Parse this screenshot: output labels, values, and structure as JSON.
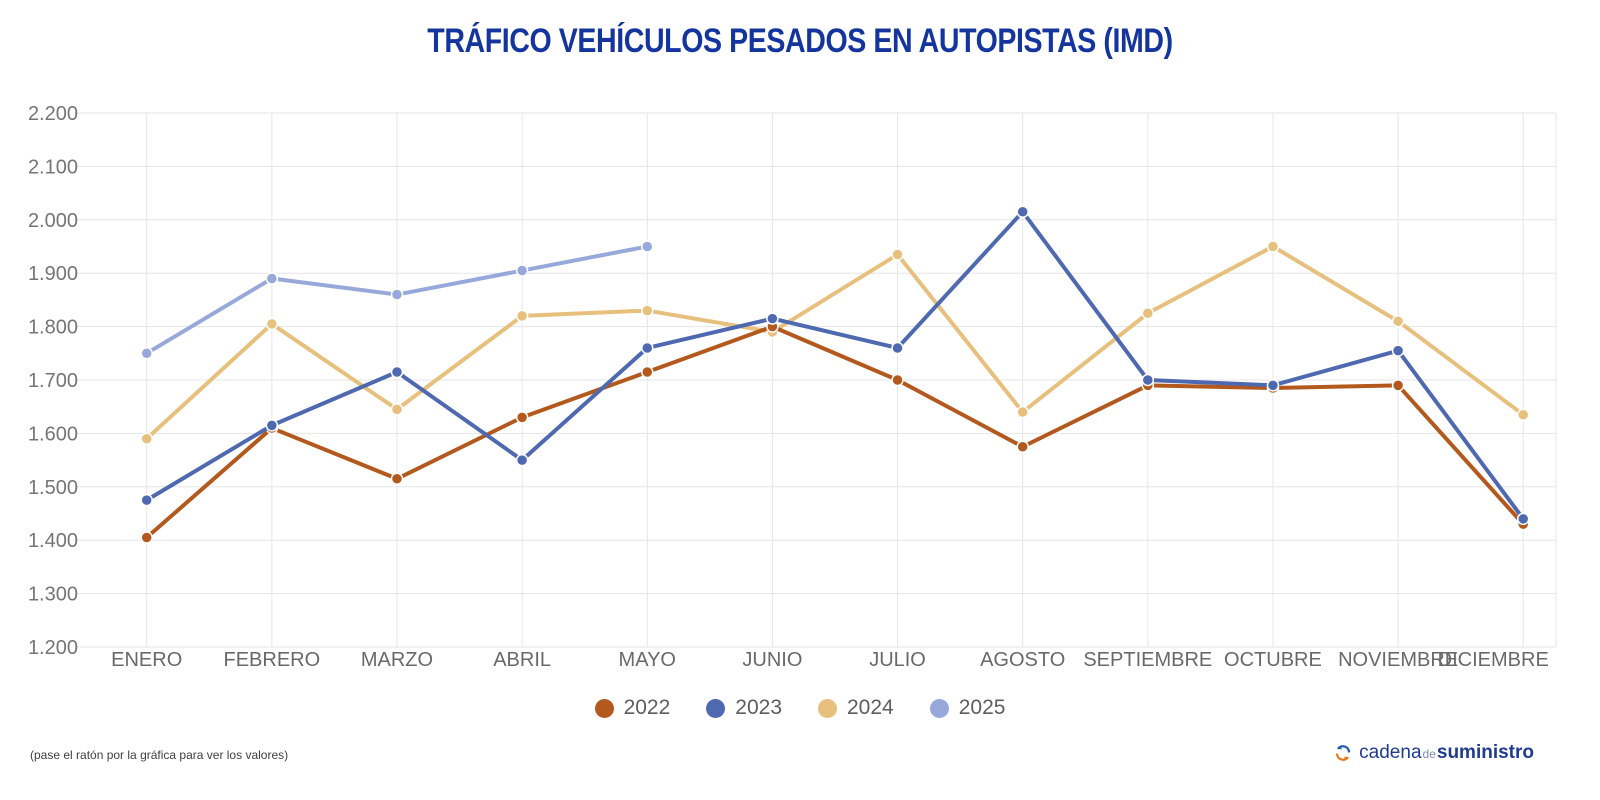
{
  "chart_data": {
    "type": "line",
    "title": "TRÁFICO VEHÍCULOS PESADOS EN AUTOPISTAS (IMD)",
    "categories": [
      "ENERO",
      "FEBRERO",
      "MARZO",
      "ABRIL",
      "MAYO",
      "JUNIO",
      "JULIO",
      "AGOSTO",
      "SEPTIEMBRE",
      "OCTUBRE",
      "NOVIEMBRE",
      "DICIEMBRE"
    ],
    "series": [
      {
        "name": "2022",
        "color": "#b4591e",
        "values": [
          1405,
          1610,
          1515,
          1630,
          1715,
          1800,
          1700,
          1575,
          1690,
          1685,
          1690,
          1430
        ]
      },
      {
        "name": "2023",
        "color": "#4f69b1",
        "values": [
          1475,
          1615,
          1715,
          1550,
          1760,
          1815,
          1760,
          2015,
          1700,
          1690,
          1755,
          1440
        ]
      },
      {
        "name": "2024",
        "color": "#e7c07d",
        "values": [
          1590,
          1805,
          1645,
          1820,
          1830,
          1790,
          1935,
          1640,
          1825,
          1950,
          1810,
          1635
        ]
      },
      {
        "name": "2025",
        "color": "#97a9da",
        "values": [
          1750,
          1890,
          1860,
          1905,
          1950,
          null,
          null,
          null,
          null,
          null,
          null,
          null
        ]
      }
    ],
    "ylim": [
      1200,
      2200
    ],
    "ytick_step": 100,
    "grid": true,
    "legend_position": "bottom",
    "axis_text_color": "#757575",
    "grid_color": "#e6e6e6"
  },
  "footer": {
    "note": "(pase el ratón por la gráfica para ver los valores)",
    "logo": {
      "word1": "cadena",
      "word2": "de",
      "word3": "suministro"
    }
  }
}
